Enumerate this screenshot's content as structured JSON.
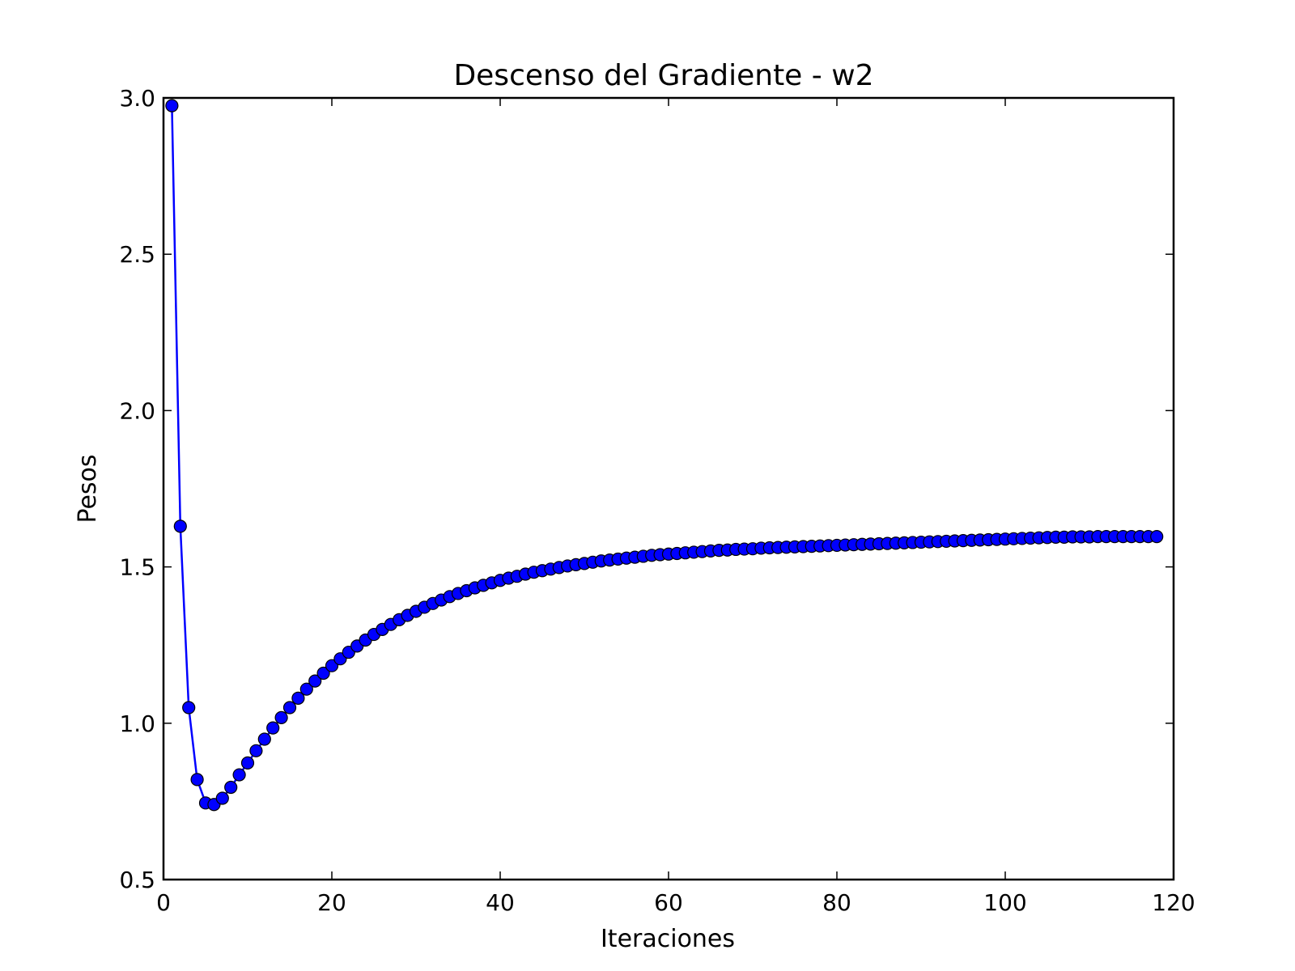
{
  "chart_data": {
    "type": "line",
    "title": "Descenso del Gradiente - w2",
    "xlabel": "Iteraciones",
    "ylabel": "Pesos",
    "xlim": [
      0,
      120
    ],
    "ylim": [
      0.5,
      3.0
    ],
    "xticks": [
      0,
      20,
      40,
      60,
      80,
      100,
      120
    ],
    "yticks": [
      0.5,
      1.0,
      1.5,
      2.0,
      2.5,
      3.0
    ],
    "xtick_labels": [
      "0",
      "20",
      "40",
      "60",
      "80",
      "100",
      "120"
    ],
    "ytick_labels": [
      "0.5",
      "1.0",
      "1.5",
      "2.0",
      "2.5",
      "3.0"
    ],
    "grid": false,
    "legend": "none",
    "series": [
      {
        "color": "#0000ff",
        "marker": "circle",
        "x": [
          1,
          2,
          3,
          4,
          5,
          6,
          7,
          8,
          9,
          10,
          11,
          12,
          13,
          14,
          15,
          16,
          17,
          18,
          19,
          20,
          21,
          22,
          23,
          24,
          25,
          26,
          27,
          28,
          29,
          30,
          31,
          32,
          33,
          34,
          35,
          36,
          37,
          38,
          39,
          40,
          41,
          42,
          43,
          44,
          45,
          46,
          47,
          48,
          49,
          50,
          51,
          52,
          53,
          54,
          55,
          56,
          57,
          58,
          59,
          60,
          61,
          62,
          63,
          64,
          65,
          66,
          67,
          68,
          69,
          70,
          71,
          72,
          73,
          74,
          75,
          76,
          77,
          78,
          79,
          80,
          81,
          82,
          83,
          84,
          85,
          86,
          87,
          88,
          89,
          90,
          91,
          92,
          93,
          94,
          95,
          96,
          97,
          98,
          99,
          100,
          101,
          102,
          103,
          104,
          105,
          106,
          107,
          108,
          109,
          110,
          111,
          112,
          113,
          114,
          115,
          116,
          117,
          118
        ],
        "y": [
          2.975,
          1.63,
          1.05,
          0.82,
          0.745,
          0.74,
          0.76,
          0.795,
          0.835,
          0.873,
          0.912,
          0.949,
          0.985,
          1.018,
          1.05,
          1.08,
          1.109,
          1.135,
          1.16,
          1.184,
          1.206,
          1.227,
          1.247,
          1.266,
          1.284,
          1.3,
          1.316,
          1.331,
          1.345,
          1.358,
          1.371,
          1.383,
          1.394,
          1.405,
          1.415,
          1.424,
          1.433,
          1.441,
          1.449,
          1.457,
          1.464,
          1.47,
          1.477,
          1.483,
          1.488,
          1.493,
          1.498,
          1.503,
          1.507,
          1.511,
          1.515,
          1.519,
          1.522,
          1.525,
          1.528,
          1.531,
          1.534,
          1.537,
          1.539,
          1.541,
          1.543,
          1.545,
          1.547,
          1.549,
          1.551,
          1.553,
          1.554,
          1.556,
          1.557,
          1.558,
          1.56,
          1.561,
          1.562,
          1.563,
          1.564,
          1.565,
          1.566,
          1.567,
          1.568,
          1.569,
          1.57,
          1.571,
          1.572,
          1.573,
          1.574,
          1.575,
          1.576,
          1.577,
          1.578,
          1.579,
          1.58,
          1.581,
          1.582,
          1.583,
          1.584,
          1.585,
          1.586,
          1.587,
          1.588,
          1.589,
          1.59,
          1.591,
          1.592,
          1.593,
          1.594,
          1.595,
          1.595,
          1.596,
          1.596,
          1.596,
          1.597,
          1.597,
          1.597,
          1.597,
          1.597,
          1.597,
          1.597,
          1.597
        ]
      }
    ]
  }
}
